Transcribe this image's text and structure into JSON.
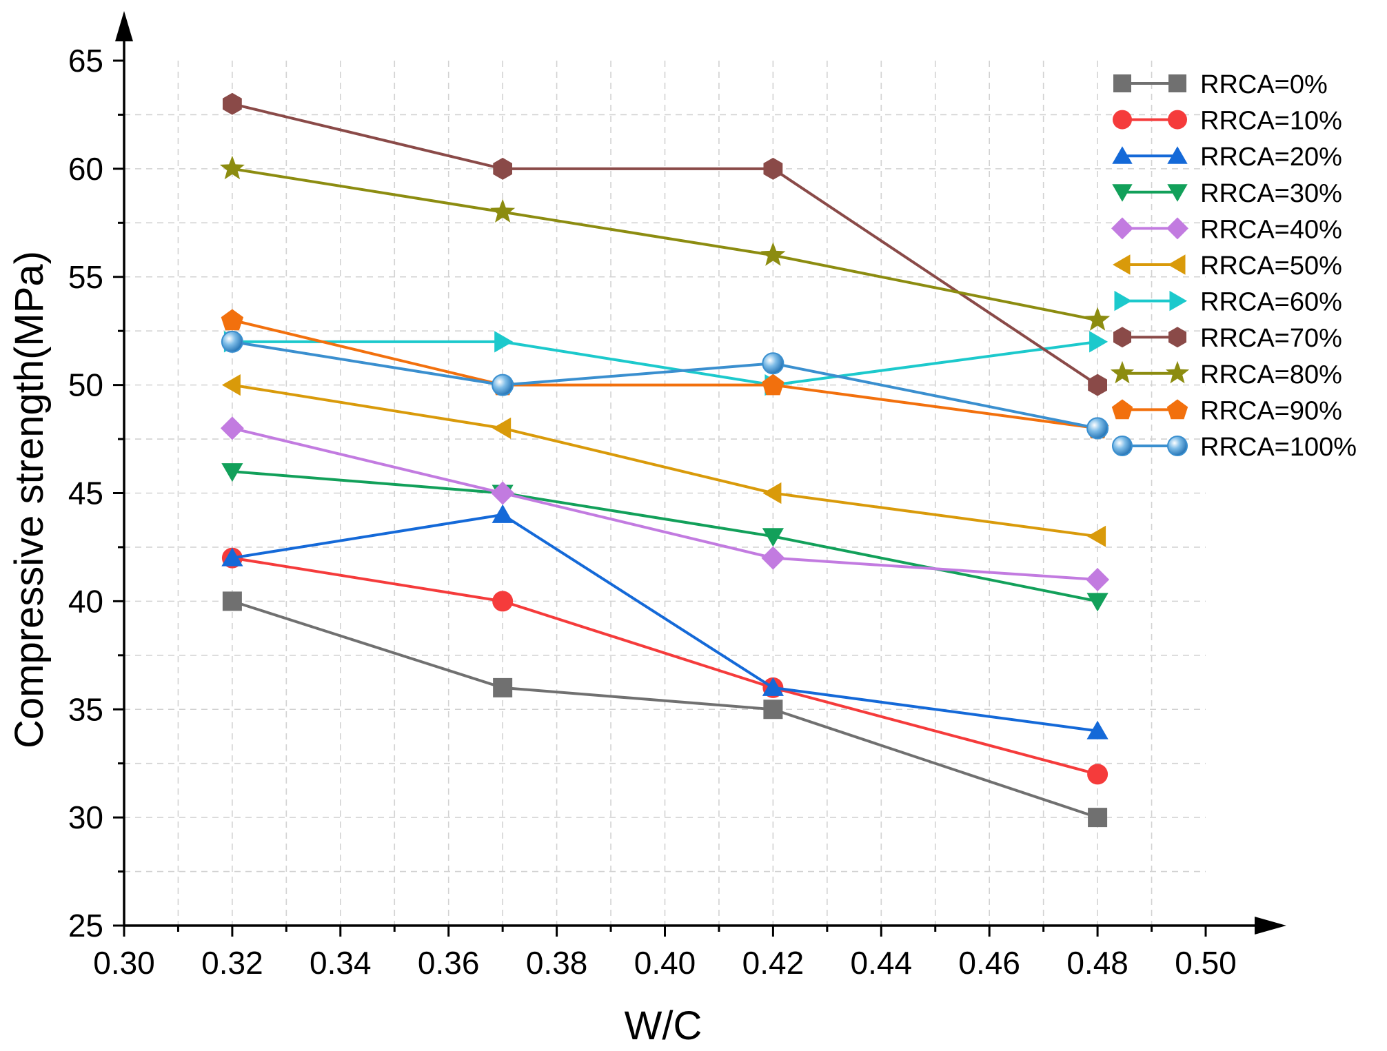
{
  "chart_data": {
    "type": "line",
    "title": "",
    "xlabel": "W/C",
    "ylabel": "Compressive strength(MPa)",
    "xlim": [
      0.3,
      0.5
    ],
    "ylim": [
      25,
      65
    ],
    "xticks": [
      "0.30",
      "0.32",
      "0.34",
      "0.36",
      "0.38",
      "0.40",
      "0.42",
      "0.44",
      "0.46",
      "0.48",
      "0.50"
    ],
    "yticks": [
      "25",
      "30",
      "35",
      "40",
      "45",
      "50",
      "55",
      "60",
      "65"
    ],
    "grid": true,
    "legend_position": "top-right",
    "x": [
      0.32,
      0.37,
      0.42,
      0.48
    ],
    "series": [
      {
        "name": "RRCA=0%",
        "values": [
          40,
          36,
          35,
          30
        ],
        "color": "#707070",
        "marker": "square"
      },
      {
        "name": "RRCA=10%",
        "values": [
          42,
          40,
          36,
          32
        ],
        "color": "#f53b3b",
        "marker": "circle"
      },
      {
        "name": "RRCA=20%",
        "values": [
          42,
          44,
          36,
          34
        ],
        "color": "#1469d8",
        "marker": "triangle-up"
      },
      {
        "name": "RRCA=30%",
        "values": [
          46,
          45,
          43,
          40
        ],
        "color": "#12a05a",
        "marker": "triangle-down"
      },
      {
        "name": "RRCA=40%",
        "values": [
          48,
          45,
          42,
          41
        ],
        "color": "#c27be0",
        "marker": "diamond"
      },
      {
        "name": "RRCA=50%",
        "values": [
          50,
          48,
          45,
          43
        ],
        "color": "#d99a0a",
        "marker": "triangle-left"
      },
      {
        "name": "RRCA=60%",
        "values": [
          52,
          52,
          50,
          52
        ],
        "color": "#1cc9cc",
        "marker": "triangle-right"
      },
      {
        "name": "RRCA=70%",
        "values": [
          63,
          60,
          60,
          50
        ],
        "color": "#8a4a48",
        "marker": "hexagon"
      },
      {
        "name": "RRCA=80%",
        "values": [
          60,
          58,
          56,
          53
        ],
        "color": "#8c8c10",
        "marker": "star"
      },
      {
        "name": "RRCA=90%",
        "values": [
          53,
          50,
          50,
          48
        ],
        "color": "#f2700d",
        "marker": "pentagon"
      },
      {
        "name": "RRCA=100%",
        "values": [
          52,
          50,
          51,
          48
        ],
        "color": "#3a8fcf",
        "marker": "sphere"
      }
    ]
  }
}
